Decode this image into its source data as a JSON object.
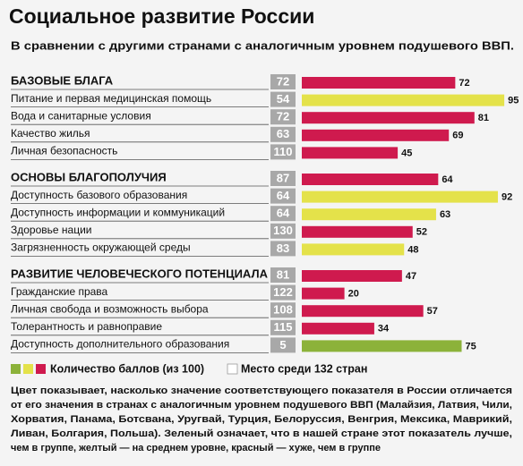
{
  "chart_data": {
    "type": "bar",
    "title": "Социальное развитие России",
    "subtitle": "В сравнении с другими странами с аналогичным уровнем подушевого ВВП.",
    "categories": [
      "БАЗОВЫЕ БЛАГА",
      "Питание и первая медицинская помощь",
      "Вода и санитарные условия",
      "Качество жилья",
      "Личная безопасность",
      "ОСНОВЫ БЛАГОПОЛУЧИЯ",
      "Доступность базового образования",
      "Доступность информации и коммуникаций",
      "Здоровье нации",
      "Загрязненность окружающей среды",
      "РАЗВИТИЕ ЧЕЛОВЕЧЕСКОГО ПОТЕНЦИАЛА",
      "Гражданские права",
      "Личная свобода и возможность выбора",
      "Толерантность и равноправие",
      "Доступность дополнительного образования"
    ],
    "ranks": [
      72,
      54,
      72,
      63,
      110,
      87,
      64,
      64,
      130,
      83,
      81,
      122,
      108,
      115,
      5
    ],
    "values": [
      72,
      95,
      81,
      69,
      45,
      64,
      92,
      63,
      52,
      48,
      47,
      20,
      57,
      34,
      75
    ],
    "colors": [
      "#cf1a4e",
      "#e4e24a",
      "#cf1a4e",
      "#cf1a4e",
      "#cf1a4e",
      "#cf1a4e",
      "#e4e24a",
      "#e4e24a",
      "#cf1a4e",
      "#e4e24a",
      "#cf1a4e",
      "#cf1a4e",
      "#cf1a4e",
      "#cf1a4e",
      "#8cb23a"
    ],
    "xlim": [
      0,
      100
    ],
    "legend": {
      "colors": [
        "#8cb23a",
        "#e4e24a",
        "#cf1a4e"
      ],
      "score_label": "Количество баллов (из 100)",
      "rank_label": "Место среди 132 стран"
    },
    "note": [
      "Цвет показывает, насколько значение соответствующего показателя в России отличается",
      "от его значения в странах с аналогичным уровнем подушевого ВВП (Малайзия, Латвия, Чили,",
      "Хорватия, Панама, Ботсвана, Уругвай, Турция, Белоруссия, Венгрия, Мексика, Маврикий,",
      "Ливан, Болгария, Польша). Зеленый означает, что в нашей стране этот показатель  лучше,",
      "чем в группе, желтый — на среднем уровне, красный — хуже, чем в группе"
    ]
  }
}
